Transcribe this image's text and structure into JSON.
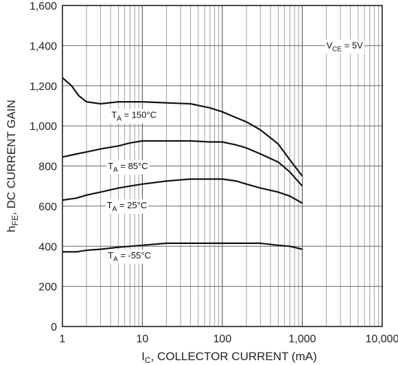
{
  "chart_data": {
    "type": "line",
    "x_scale": "log",
    "xlim": [
      1,
      10000
    ],
    "ylim": [
      0,
      1600
    ],
    "grid": true,
    "x_ticks": [
      {
        "value": 1,
        "label": "1"
      },
      {
        "value": 10,
        "label": "10"
      },
      {
        "value": 100,
        "label": "100"
      },
      {
        "value": 1000,
        "label": "1,000"
      },
      {
        "value": 10000,
        "label": "10,000"
      }
    ],
    "y_ticks": [
      {
        "value": 0,
        "label": "0"
      },
      {
        "value": 200,
        "label": "200"
      },
      {
        "value": 400,
        "label": "400"
      },
      {
        "value": 600,
        "label": "600"
      },
      {
        "value": 800,
        "label": "800"
      },
      {
        "value": 1000,
        "label": "1,000"
      },
      {
        "value": 1200,
        "label": "1,200"
      },
      {
        "value": 1400,
        "label": "1,400"
      },
      {
        "value": 1600,
        "label": "1,600"
      }
    ],
    "xlabel": {
      "main": "I",
      "sub": "C",
      "rest": ", COLLECTOR CURRENT (mA)"
    },
    "ylabel": {
      "main": "h",
      "sub": "FE",
      "rest": ", DC CURRENT GAIN"
    },
    "annotation": {
      "main": "V",
      "sub": "CE",
      "rest": " = 5V",
      "x": 2000,
      "y": 1400
    },
    "series": [
      {
        "label": {
          "main": "T",
          "sub": "A",
          "rest": " = 150°C",
          "x": 4.1,
          "y": 1040
        },
        "x": [
          1,
          1.3,
          1.6,
          2,
          3,
          5,
          10,
          20,
          40,
          70,
          100,
          150,
          200,
          300,
          500,
          700,
          1000
        ],
        "y": [
          1240,
          1200,
          1150,
          1120,
          1110,
          1120,
          1120,
          1115,
          1110,
          1090,
          1070,
          1040,
          1020,
          980,
          910,
          830,
          750
        ]
      },
      {
        "label": {
          "main": "T",
          "sub": "A",
          "rest": " = 85°C",
          "x": 3.7,
          "y": 785
        },
        "x": [
          1,
          1.5,
          2,
          3,
          5,
          7,
          10,
          20,
          40,
          70,
          100,
          150,
          200,
          300,
          500,
          700,
          1000
        ],
        "y": [
          845,
          860,
          870,
          885,
          900,
          915,
          925,
          925,
          925,
          920,
          920,
          905,
          890,
          860,
          820,
          770,
          700
        ]
      },
      {
        "label": {
          "main": "T",
          "sub": "A",
          "rest": " = 25°C",
          "x": 3.6,
          "y": 590
        },
        "x": [
          1,
          1.5,
          2,
          3,
          5,
          7,
          10,
          20,
          40,
          70,
          100,
          150,
          200,
          300,
          500,
          700,
          1000
        ],
        "y": [
          630,
          640,
          655,
          670,
          690,
          700,
          710,
          725,
          735,
          735,
          735,
          725,
          710,
          690,
          670,
          650,
          615
        ]
      },
      {
        "label": {
          "main": "T",
          "sub": "A",
          "rest": " = -55°C",
          "x": 3.7,
          "y": 340
        },
        "x": [
          1,
          1.5,
          2,
          3,
          5,
          7,
          10,
          20,
          40,
          70,
          100,
          150,
          200,
          300,
          500,
          700,
          1000
        ],
        "y": [
          372,
          372,
          380,
          385,
          395,
          400,
          405,
          415,
          415,
          415,
          415,
          415,
          415,
          415,
          405,
          400,
          385
        ]
      }
    ]
  }
}
